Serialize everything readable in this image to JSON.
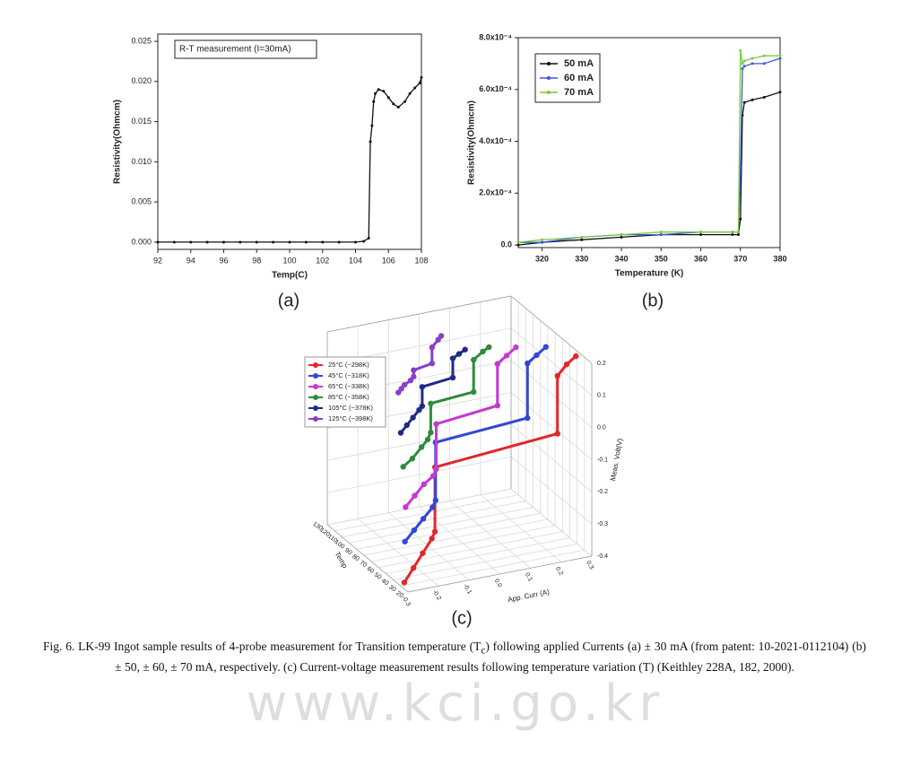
{
  "chart_data": [
    {
      "type": "line",
      "xlabel": "Temp(C)",
      "ylabel": "Resistivity(Ohmcm)",
      "x": [
        92,
        93,
        94,
        95,
        96,
        97,
        98,
        99,
        100,
        101,
        102,
        103,
        104,
        104.5,
        104.8,
        104.9,
        105.0,
        105.1,
        105.2,
        105.4,
        105.7,
        106,
        106.3,
        106.6,
        107,
        107.3,
        107.6,
        107.9,
        108
      ],
      "series": [
        {
          "name": "R-T measurement (I=30mA)",
          "color": "#111111",
          "values": [
            0,
            0,
            0,
            0,
            0,
            0,
            0,
            0,
            0,
            0,
            0,
            0,
            0,
            0.0001,
            0.0005,
            0.0125,
            0.0145,
            0.0175,
            0.0185,
            0.019,
            0.0188,
            0.018,
            0.0172,
            0.0168,
            0.0175,
            0.0185,
            0.0192,
            0.0198,
            0.0205
          ]
        }
      ],
      "xlim": [
        92,
        108
      ],
      "xticks": [
        92,
        94,
        96,
        98,
        100,
        102,
        104,
        106,
        108
      ],
      "ylim": [
        -0.0009,
        0.0259
      ],
      "yticks": [
        {
          "value": 0,
          "label": "0.000"
        },
        {
          "value": 0.005,
          "label": "0.005"
        },
        {
          "value": 0.01,
          "label": "0.010"
        },
        {
          "value": 0.015,
          "label": "0.015"
        },
        {
          "value": 0.02,
          "label": "0.020"
        },
        {
          "value": 0.025,
          "label": "0.025"
        }
      ],
      "legend": "upper left",
      "grid": false
    },
    {
      "type": "line",
      "xlabel": "Temperature (K)",
      "ylabel": "Resistivity(Ohmcm)",
      "x": [
        314,
        320,
        330,
        340,
        350,
        360,
        368,
        369.5,
        370,
        370.5,
        371,
        373,
        376,
        380
      ],
      "series": [
        {
          "name": "50 mA",
          "color": "#111111",
          "values": [
            0,
            1e-05,
            2e-05,
            3e-05,
            4e-05,
            4e-05,
            4e-05,
            4e-05,
            0.0001,
            0.0005,
            0.00055,
            0.00056,
            0.00057,
            0.00059
          ]
        },
        {
          "name": "60 mA",
          "color": "#3a5bd9",
          "values": [
            1e-05,
            1e-05,
            3e-05,
            4e-05,
            4e-05,
            5e-05,
            5e-05,
            5e-05,
            0.0003,
            0.00068,
            0.00069,
            0.0007,
            0.0007,
            0.00072
          ]
        },
        {
          "name": "70 mA",
          "color": "#7ac943",
          "values": [
            1e-05,
            2e-05,
            3e-05,
            4e-05,
            5e-05,
            5e-05,
            5e-05,
            5e-05,
            0.00075,
            0.0007,
            0.00071,
            0.00072,
            0.00073,
            0.00073
          ]
        }
      ],
      "xlim": [
        314,
        380
      ],
      "xticks": [
        320,
        330,
        340,
        350,
        360,
        370,
        380
      ],
      "ylim": [
        -1e-05,
        0.0008
      ],
      "yticks": [
        {
          "value": 0,
          "label": "0.0"
        },
        {
          "value": 0.0002,
          "label": "2.0x10⁻⁴"
        },
        {
          "value": 0.0004,
          "label": "4.0x10⁻⁴"
        },
        {
          "value": 0.0006,
          "label": "6.0x10⁻⁴"
        },
        {
          "value": 0.0008,
          "label": "8.0x10⁻⁴"
        }
      ],
      "legend": "upper left",
      "grid": false
    },
    {
      "type": "line3d",
      "xlabel": "App. Curr (A)",
      "ylabel": "Temp",
      "zlabel": "Meas. Volt(V)",
      "xlim": [
        -0.3,
        0.3
      ],
      "xticks": [
        -0.3,
        -0.2,
        -0.1,
        {
          "value": 0,
          "label": "0.0"
        },
        0.1,
        0.2,
        0.3
      ],
      "ylim": [
        20,
        130
      ],
      "yticks": [
        20,
        30,
        40,
        50,
        60,
        70,
        80,
        90,
        100,
        110,
        120,
        130
      ],
      "zlim": [
        -0.4,
        0.2
      ],
      "zticks": [
        -0.4,
        -0.3,
        -0.2,
        -0.1,
        {
          "value": 0,
          "label": "0.0"
        },
        0.1,
        0.2
      ],
      "series": [
        {
          "name": "25°C (~298K)",
          "color": "#e0282a",
          "temp": 25,
          "x": [
            -0.3,
            -0.27,
            -0.24,
            -0.21,
            -0.2,
            -0.2,
            0.2,
            0.2,
            0.23,
            0.26
          ],
          "values": [
            -0.38,
            -0.34,
            -0.3,
            -0.26,
            -0.24,
            -0.04,
            -0.01,
            0.17,
            0.2,
            0.22
          ]
        },
        {
          "name": "45°C (~318K)",
          "color": "#3347d6",
          "temp": 45,
          "x": [
            -0.25,
            -0.22,
            -0.19,
            -0.16,
            -0.15,
            -0.15,
            0.15,
            0.15,
            0.18,
            0.21
          ],
          "values": [
            -0.3,
            -0.27,
            -0.24,
            -0.21,
            -0.19,
            -0.01,
            0.01,
            0.18,
            0.2,
            0.22
          ]
        },
        {
          "name": "65°C (~338K)",
          "color": "#c33ad1",
          "temp": 65,
          "x": [
            -0.2,
            -0.17,
            -0.14,
            -0.11,
            -0.1,
            -0.1,
            0.1,
            0.1,
            0.13,
            0.16
          ],
          "values": [
            -0.24,
            -0.21,
            -0.18,
            -0.16,
            -0.14,
            0,
            0.02,
            0.15,
            0.17,
            0.19
          ]
        },
        {
          "name": "85°C (~358K)",
          "color": "#2e8b3a",
          "temp": 85,
          "x": [
            -0.16,
            -0.13,
            -0.1,
            -0.08,
            -0.07,
            -0.07,
            0.07,
            0.07,
            0.1,
            0.12
          ],
          "values": [
            -0.16,
            -0.14,
            -0.11,
            -0.09,
            -0.07,
            0.02,
            0.03,
            0.13,
            0.15,
            0.16
          ]
        },
        {
          "name": "105°C (~378K)",
          "color": "#1f2a8a",
          "temp": 105,
          "x": [
            -0.12,
            -0.1,
            -0.08,
            -0.06,
            -0.05,
            -0.05,
            0.05,
            0.05,
            0.07,
            0.09
          ],
          "values": [
            -0.1,
            -0.08,
            -0.06,
            -0.04,
            -0.03,
            0.03,
            0.04,
            0.1,
            0.11,
            0.12
          ]
        },
        {
          "name": "125°C (~398K)",
          "color": "#8a3ec9",
          "temp": 125,
          "x": [
            -0.08,
            -0.07,
            -0.06,
            -0.04,
            -0.03,
            -0.03,
            0.03,
            0.03,
            0.05,
            0.06
          ],
          "values": [
            -0.02,
            -0.01,
            0,
            0.01,
            0.02,
            0.04,
            0.05,
            0.1,
            0.12,
            0.13
          ]
        }
      ],
      "legend": "upper left",
      "grid": true
    }
  ],
  "panel_labels": [
    "(a)",
    "(b)",
    "(c)"
  ],
  "caption": [
    "Fig. 6. LK-99 Ingot sample results of 4-probe measurement for Transition temperature (T",
    "c",
    ") following applied Currents (a) ± 30 mA (from patent: 10-2021-0112104) (b) ± 50, ± 60, ± 70 mA, respectively. (c) Current-voltage measurement results following temperature variation (T) (Keithley 228A, 182, 2000)."
  ],
  "watermark": "www.kci.go.kr"
}
